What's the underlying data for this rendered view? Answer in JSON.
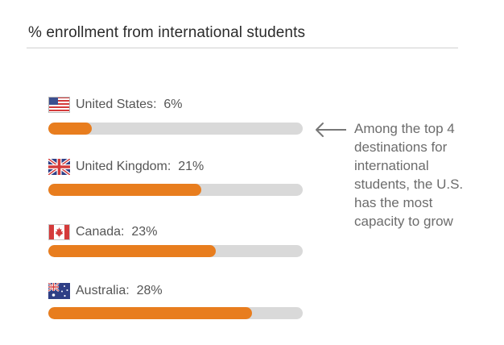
{
  "chart_data": {
    "type": "bar",
    "orientation": "horizontal",
    "title": "% enrollment from international students",
    "categories": [
      "United States",
      "United Kingdom",
      "Canada",
      "Australia"
    ],
    "values": [
      6,
      21,
      23,
      28
    ],
    "value_labels": [
      "6%",
      "21%",
      "23%",
      "28%"
    ],
    "xlim": [
      0,
      35
    ],
    "grid": false,
    "colors": {
      "bar": "#e87d1e",
      "track": "#d9d9d9"
    },
    "icons": [
      "us-flag-icon",
      "uk-flag-icon",
      "canada-flag-icon",
      "australia-flag-icon"
    ],
    "annotation": "Among the top 4 destinations for international students, the U.S. has the most capacity to grow"
  }
}
